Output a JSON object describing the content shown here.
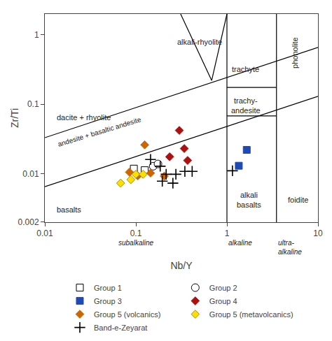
{
  "chart_data": {
    "type": "scatter",
    "xlabel": "Nb/Y",
    "ylabel": "Zr/Ti",
    "log": true,
    "xlim": [
      0.01,
      10
    ],
    "ylim": [
      0.002,
      2
    ],
    "xticks": [
      0.01,
      0.1,
      1,
      10
    ],
    "yticks": [
      0.002,
      0.01,
      0.1,
      1
    ],
    "grid": false,
    "legend": "bottom",
    "series": [
      {
        "name": "Group 1",
        "marker": "square",
        "color": "white",
        "edgecolor": "black",
        "x": [
          0.095,
          0.125
        ],
        "values": [
          0.0118,
          0.0112
        ]
      },
      {
        "name": "Group 2",
        "marker": "circle",
        "color": "white",
        "edgecolor": "black",
        "x": [
          0.155,
          0.175
        ],
        "values": [
          0.0128,
          0.0138
        ]
      },
      {
        "name": "Group 3",
        "marker": "square",
        "color": "#1f4ab5",
        "x": [
          1.35,
          1.65
        ],
        "values": [
          0.013,
          0.022
        ]
      },
      {
        "name": "Group 4",
        "marker": "diamond",
        "color": "#aa1111",
        "x": [
          0.3,
          0.34,
          0.235,
          0.37
        ],
        "values": [
          0.042,
          0.023,
          0.0175,
          0.0155
        ]
      },
      {
        "name": "Group 5 (volcanics)",
        "marker": "diamond",
        "color": "#cc6600",
        "x": [
          0.085,
          0.145,
          0.125,
          0.105,
          0.205
        ],
        "values": [
          0.0105,
          0.0102,
          0.026,
          0.0093,
          0.0092
        ]
      },
      {
        "name": "Group 5 (metavolcanics)",
        "marker": "diamond",
        "color": "#ffdd00",
        "edgecolor": "#999900",
        "x": [
          0.068,
          0.088,
          0.1,
          0.12
        ],
        "values": [
          0.0073,
          0.0082,
          0.0098,
          0.0098
        ]
      },
      {
        "name": "Band-e-Zeyarat",
        "marker": "plus",
        "color": "black",
        "x": [
          0.145,
          0.185,
          0.215,
          0.275,
          0.345,
          0.415,
          0.195,
          0.255,
          1.15
        ],
        "values": [
          0.016,
          0.0128,
          0.0098,
          0.0098,
          0.0108,
          0.0108,
          0.0078,
          0.0073,
          0.011
        ]
      }
    ],
    "boundaries": [
      {
        "color": "black",
        "x": [
          0.01,
          10
        ],
        "values": [
          0.0065,
          0.13
        ]
      },
      {
        "color": "black",
        "x": [
          0.01,
          10
        ],
        "values": [
          0.033,
          0.66
        ]
      },
      {
        "color": "black",
        "x": [
          0.31,
          0.68
        ],
        "values": [
          2.0,
          0.22
        ]
      },
      {
        "color": "black",
        "x": [
          0.68,
          1.0
        ],
        "values": [
          0.22,
          2.0
        ]
      },
      {
        "color": "black",
        "x": [
          1.0,
          3.5
        ],
        "values": [
          0.175,
          0.175
        ]
      },
      {
        "color": "black",
        "x": [
          1.0,
          3.5
        ],
        "values": [
          0.068,
          0.068
        ]
      }
    ],
    "vlines": [
      1.0,
      3.5
    ],
    "vline_color": "black",
    "annotations": [
      {
        "text": "alkali-rhyolite",
        "x": 0.5,
        "y": 0.8
      },
      {
        "text": "phonolite",
        "x": 5.5,
        "y": 0.55
      },
      {
        "text": "trachyte",
        "x": 1.6,
        "y": 0.32
      },
      {
        "text": "trachy-\nandesite",
        "x": 1.6,
        "y": 0.095
      },
      {
        "text": "dacite + rhyolite",
        "x": 0.013,
        "y": 0.065
      },
      {
        "text": "basalts",
        "x": 0.013,
        "y": 0.003
      },
      {
        "text": "alkali\nbasalts",
        "x": 1.75,
        "y": 0.0042
      },
      {
        "text": "foidite",
        "x": 6.0,
        "y": 0.0042
      },
      {
        "text": "andesite + basaltic andesite",
        "x": 0.013,
        "y": 0.022
      }
    ],
    "axis_notes": [
      {
        "text": "subalkaline",
        "x": 0.1
      },
      {
        "text": "alkaline",
        "x": 1.0
      },
      {
        "text": "ultra-\nalkaline",
        "x": 3.5
      }
    ]
  }
}
